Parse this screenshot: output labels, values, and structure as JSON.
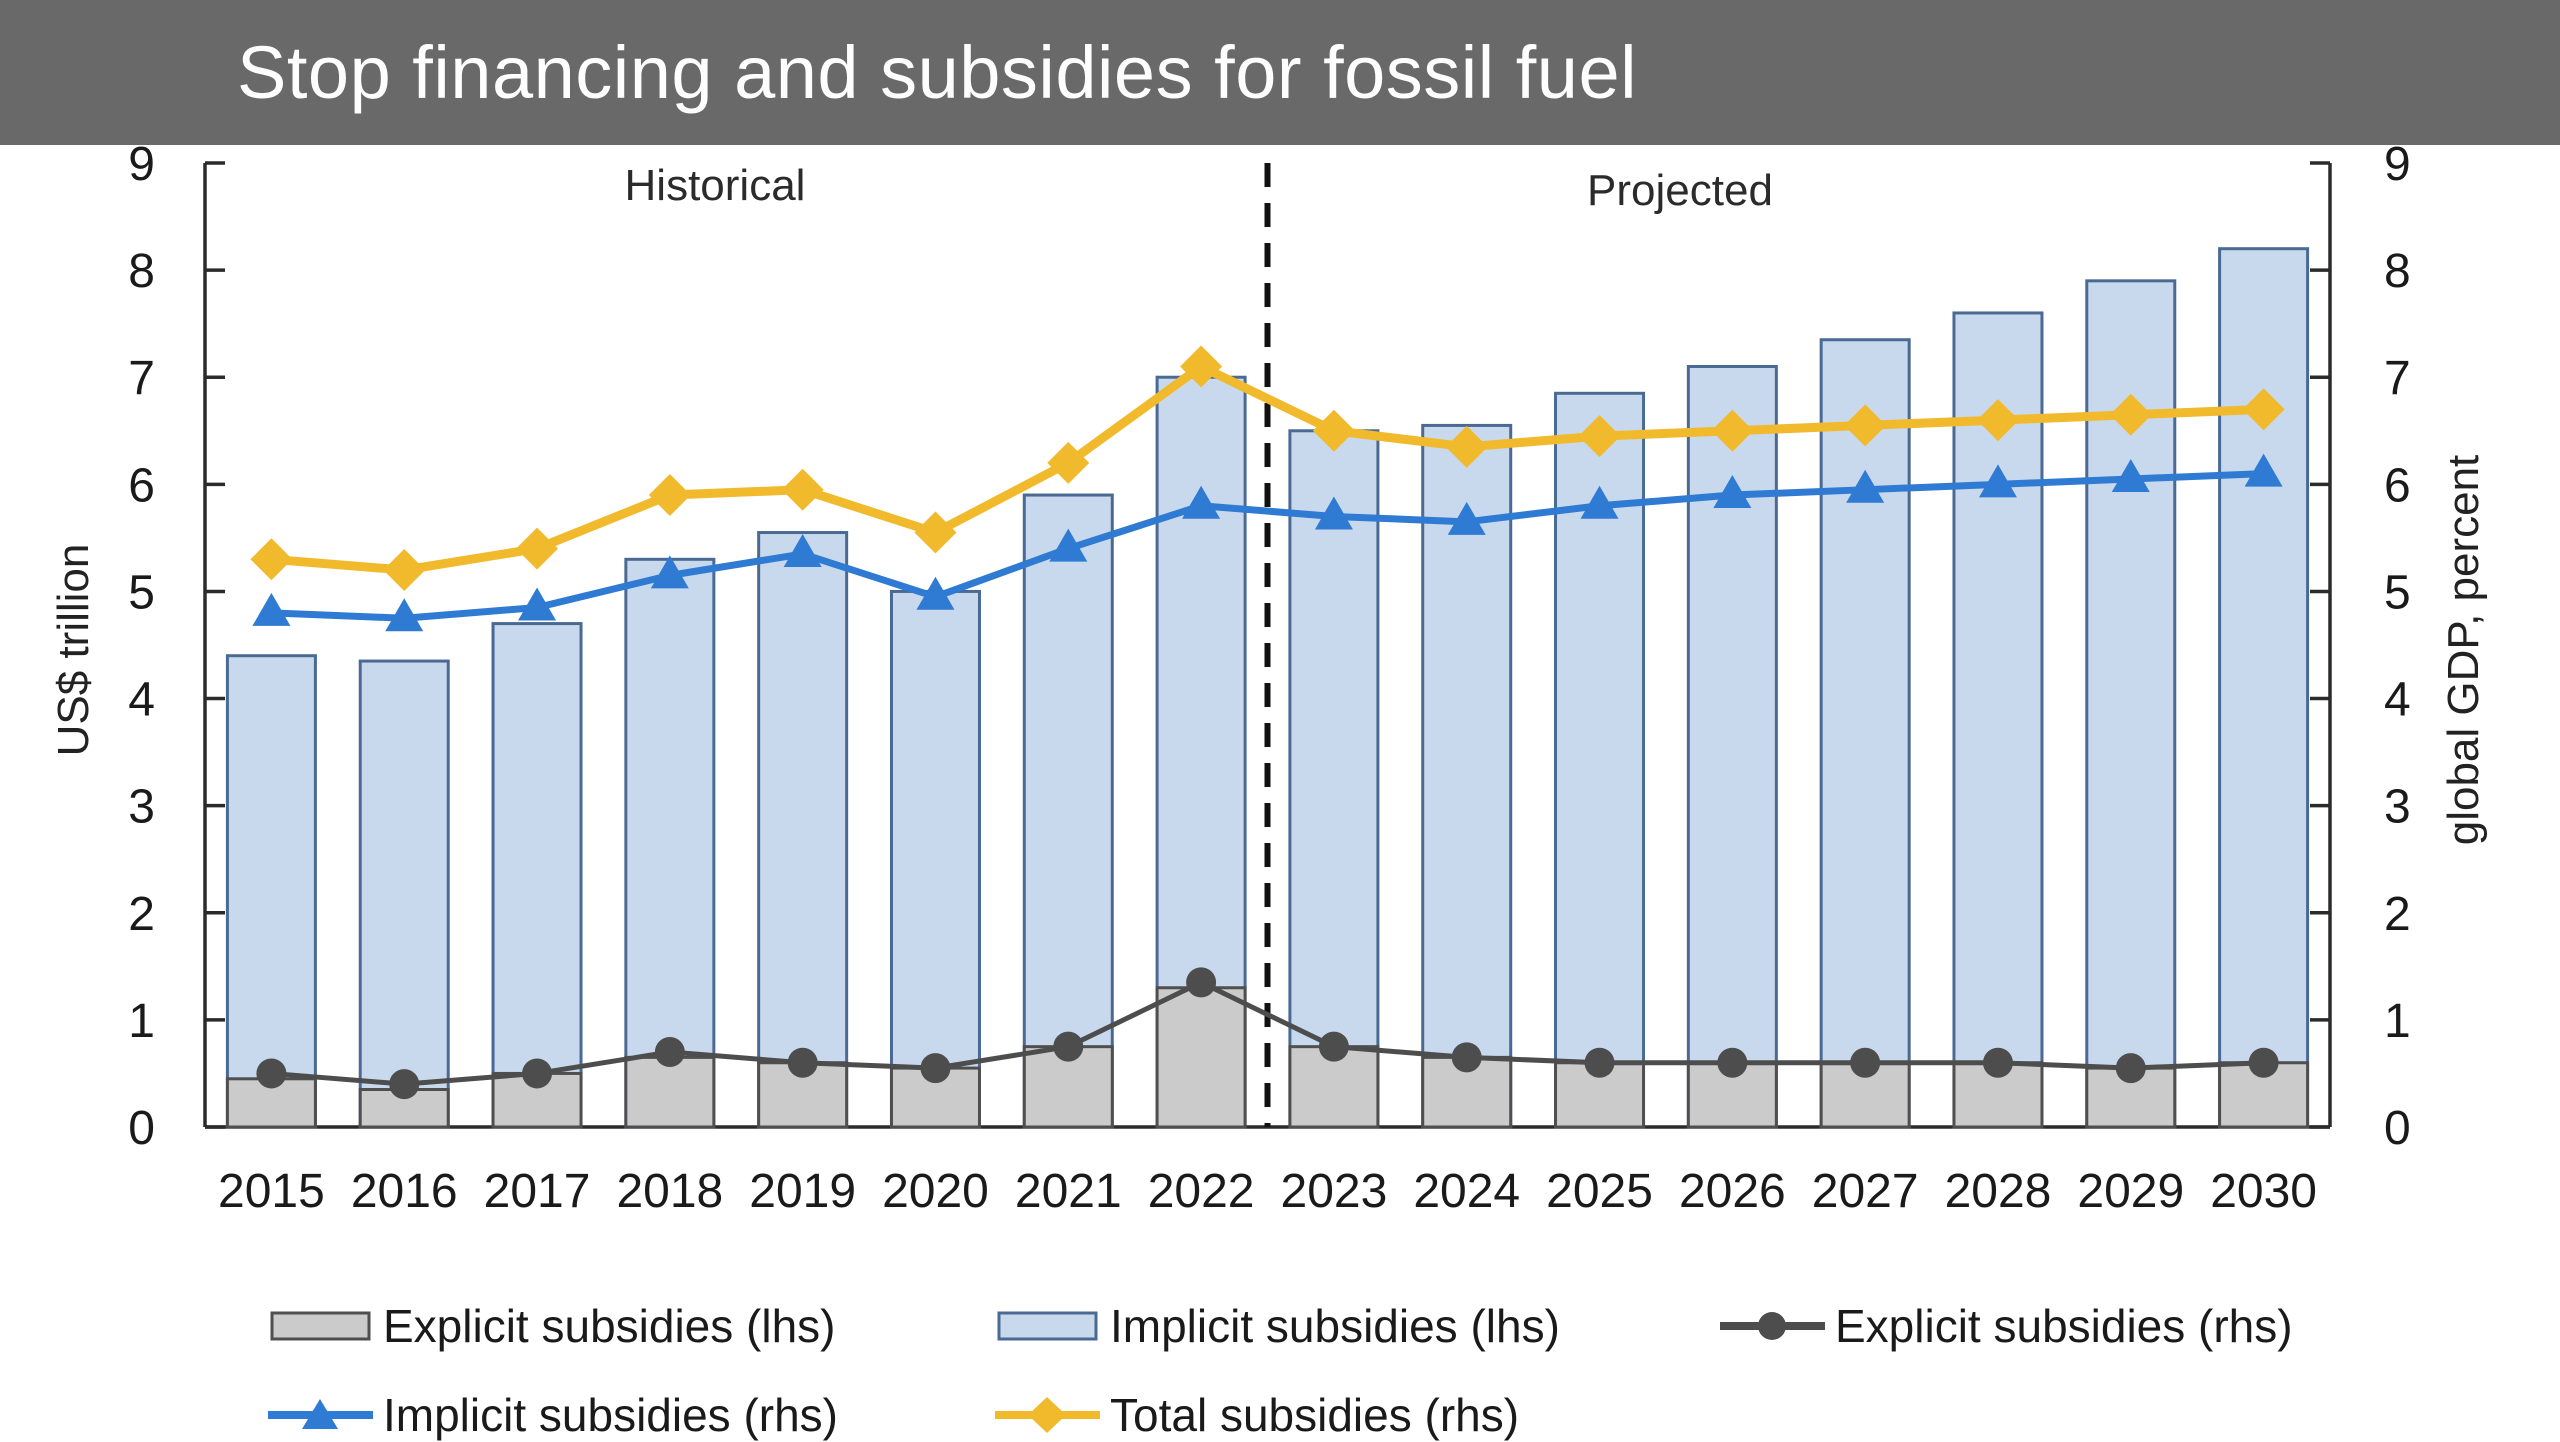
{
  "header": {
    "title": "Stop financing and subsidies for fossil fuel",
    "background": "#696969",
    "text_color": "#fdfdfd"
  },
  "chart_data": {
    "type": "bar+line",
    "title": "Stop financing and subsidies for fossil fuel",
    "categories": [
      "2015",
      "2016",
      "2017",
      "2018",
      "2019",
      "2020",
      "2021",
      "2022",
      "2023",
      "2024",
      "2025",
      "2026",
      "2027",
      "2028",
      "2029",
      "2030"
    ],
    "left_axis": {
      "label": "US$ trillion",
      "min": 0,
      "max": 9,
      "tick_step": 1
    },
    "right_axis": {
      "label": "global GDP, percent",
      "min": 0,
      "max": 9,
      "tick_step": 1
    },
    "grid": false,
    "annotations": {
      "historical_label": "Historical",
      "projected_label": "Projected",
      "divider_after": "2022",
      "divider_style": "dashed-black"
    },
    "bar_series": [
      {
        "name": "Explicit subsidies (lhs)",
        "axis": "left",
        "stack": "bottom",
        "fill": "#cbcbcb",
        "stroke": "#4f4f4f",
        "values": [
          0.45,
          0.35,
          0.5,
          0.65,
          0.6,
          0.55,
          0.75,
          1.3,
          0.75,
          0.65,
          0.6,
          0.6,
          0.6,
          0.6,
          0.55,
          0.6
        ]
      },
      {
        "name": "Implicit subsidies (lhs)",
        "axis": "left",
        "stack": "top",
        "fill": "#c9d9ed",
        "stroke": "#4a6a93",
        "values": [
          3.95,
          4.0,
          4.2,
          4.65,
          4.95,
          4.45,
          5.15,
          5.7,
          5.75,
          5.9,
          6.25,
          6.5,
          6.75,
          7.0,
          7.35,
          7.6
        ]
      }
    ],
    "line_series": [
      {
        "name": "Explicit subsidies (rhs)",
        "axis": "right",
        "marker": "circle",
        "color": "#4d4d4d",
        "width": 5,
        "values": [
          0.5,
          0.4,
          0.5,
          0.7,
          0.6,
          0.55,
          0.75,
          1.35,
          0.75,
          0.65,
          0.6,
          0.6,
          0.6,
          0.6,
          0.55,
          0.6
        ]
      },
      {
        "name": "Implicit subsidies (rhs)",
        "axis": "right",
        "marker": "triangle",
        "color": "#2f7bd3",
        "width": 7,
        "values": [
          4.8,
          4.75,
          4.85,
          5.15,
          5.35,
          4.95,
          5.4,
          5.8,
          5.7,
          5.65,
          5.8,
          5.9,
          5.95,
          6.0,
          6.05,
          6.1
        ]
      },
      {
        "name": "Total subsidies (rhs)",
        "axis": "right",
        "marker": "diamond",
        "color": "#f0ba2c",
        "width": 9,
        "values": [
          5.3,
          5.2,
          5.4,
          5.9,
          5.95,
          5.55,
          6.2,
          7.1,
          6.5,
          6.35,
          6.45,
          6.5,
          6.55,
          6.6,
          6.65,
          6.7
        ]
      }
    ],
    "legend": [
      {
        "label": "Explicit subsidies (lhs)",
        "swatch": "rect",
        "fill": "#cbcbcb",
        "stroke": "#4f4f4f"
      },
      {
        "label": "Implicit subsidies (lhs)",
        "swatch": "rect",
        "fill": "#c9d9ed",
        "stroke": "#4a6a93"
      },
      {
        "label": "Explicit subsidies (rhs)",
        "swatch": "line-circle",
        "color": "#4d4d4d"
      },
      {
        "label": "Implicit subsidies (rhs)",
        "swatch": "line-triangle",
        "color": "#2f7bd3"
      },
      {
        "label": "Total subsidies (rhs)",
        "swatch": "line-diamond",
        "color": "#f0ba2c"
      }
    ]
  }
}
